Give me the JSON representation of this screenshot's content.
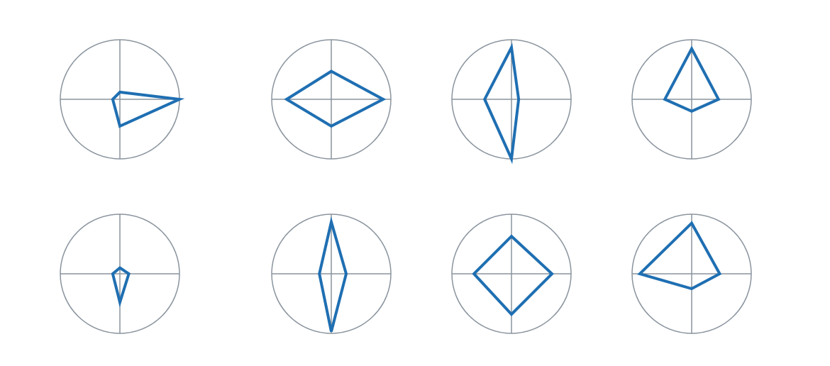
{
  "chart_data": [
    {
      "type": "radar",
      "axes": [
        "N",
        "E",
        "S",
        "W"
      ],
      "values": [
        0.12,
        1.0,
        0.45,
        0.12
      ],
      "max": 1,
      "grid": true,
      "color": "#1f6fb2"
    },
    {
      "type": "radar",
      "axes": [
        "N",
        "E",
        "S",
        "W"
      ],
      "values": [
        0.47,
        0.87,
        0.45,
        0.75
      ],
      "max": 1,
      "grid": true,
      "color": "#1f6fb2"
    },
    {
      "type": "radar",
      "axes": [
        "N",
        "E",
        "S",
        "W"
      ],
      "values": [
        0.87,
        0.12,
        1.0,
        0.45
      ],
      "max": 1,
      "grid": true,
      "color": "#1f6fb2"
    },
    {
      "type": "radar",
      "axes": [
        "N",
        "E",
        "S",
        "W"
      ],
      "values": [
        0.85,
        0.45,
        0.2,
        0.45
      ],
      "max": 1,
      "grid": true,
      "color": "#1f6fb2"
    },
    {
      "type": "radar",
      "axes": [
        "N",
        "E",
        "S",
        "W"
      ],
      "values": [
        0.1,
        0.15,
        0.48,
        0.12
      ],
      "max": 1,
      "grid": true,
      "color": "#1f6fb2"
    },
    {
      "type": "radar",
      "axes": [
        "N",
        "E",
        "S",
        "W"
      ],
      "values": [
        0.87,
        0.25,
        0.97,
        0.2
      ],
      "max": 1,
      "grid": true,
      "color": "#1f6fb2"
    },
    {
      "type": "radar",
      "axes": [
        "N",
        "E",
        "S",
        "W"
      ],
      "values": [
        0.63,
        0.68,
        0.68,
        0.63
      ],
      "max": 1,
      "grid": true,
      "color": "#1f6fb2"
    },
    {
      "type": "radar",
      "axes": [
        "N",
        "E",
        "S",
        "W"
      ],
      "values": [
        0.85,
        0.47,
        0.25,
        0.87
      ],
      "max": 1,
      "grid": true,
      "color": "#1f6fb2"
    }
  ],
  "style": {
    "series_color": "#1f6fb2",
    "grid_color": "#8a949e"
  }
}
